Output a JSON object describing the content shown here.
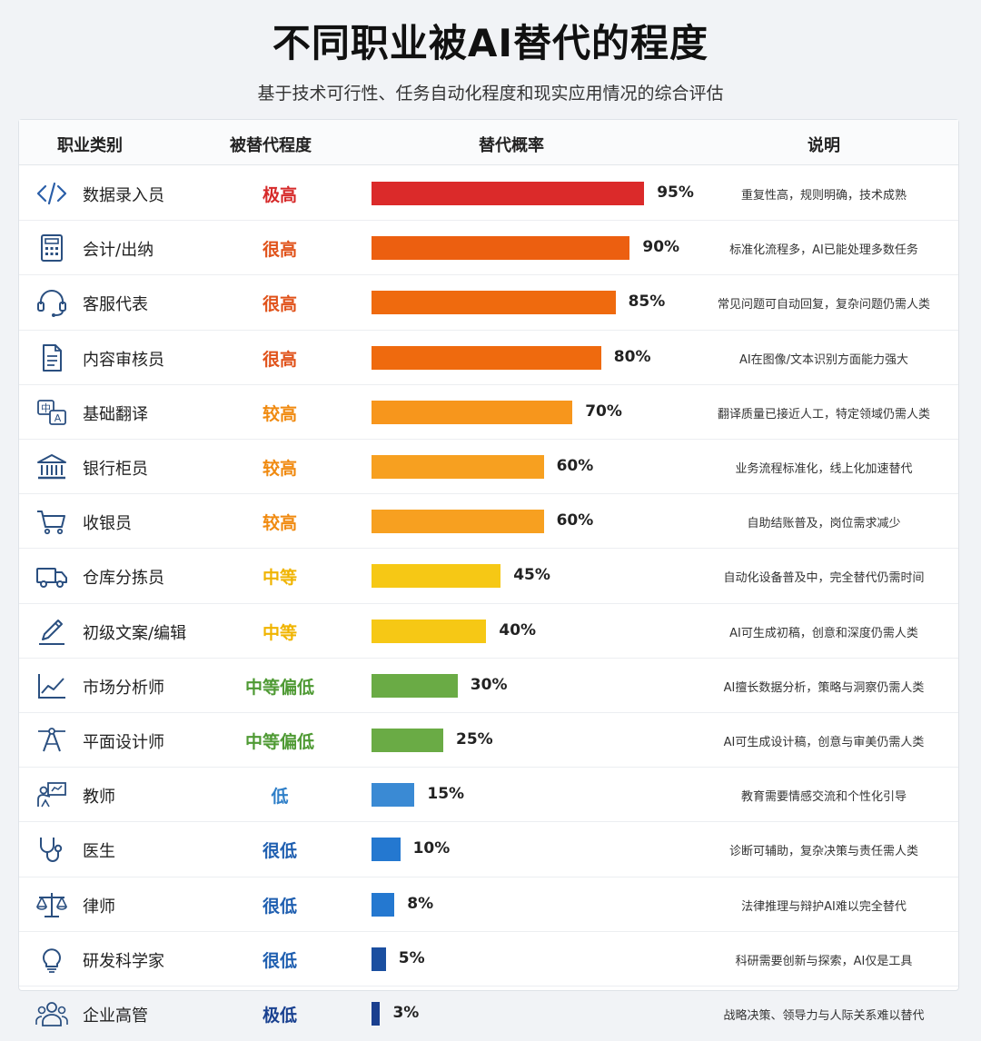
{
  "title": "不同职业被AI替代的程度",
  "subtitle": "基于技术可行性、任务自动化程度和现实应用情况的综合评估",
  "headers": {
    "job": "职业类别",
    "level": "被替代程度",
    "prob": "替代概率",
    "desc": "说明"
  },
  "chart_data": {
    "type": "bar",
    "orientation": "horizontal",
    "title": "不同职业被AI替代的程度",
    "unit": "%",
    "categories": [
      "数据录入员",
      "会计/出纳",
      "客服代表",
      "内容审核员",
      "基础翻译",
      "银行柜员",
      "收银员",
      "仓库分拣员",
      "初级文案/编辑",
      "市场分析师",
      "平面设计师",
      "教师",
      "医生",
      "律师",
      "研发科学家",
      "企业高管"
    ],
    "values": [
      95,
      90,
      85,
      80,
      70,
      60,
      60,
      45,
      40,
      30,
      25,
      15,
      10,
      8,
      5,
      3
    ],
    "xlim": [
      0,
      100
    ],
    "rows": [
      {
        "icon": "code-icon",
        "job": "数据录入员",
        "level": "极高",
        "level_color": "#d62a2a",
        "value": 95,
        "pct": "95%",
        "bar_color": "#db2a2a",
        "desc": "重复性高，规则明确，技术成熟"
      },
      {
        "icon": "calculator-icon",
        "job": "会计/出纳",
        "level": "很高",
        "level_color": "#e0521a",
        "value": 90,
        "pct": "90%",
        "bar_color": "#ec5f10",
        "desc": "标准化流程多，AI已能处理多数任务"
      },
      {
        "icon": "headset-icon",
        "job": "客服代表",
        "level": "很高",
        "level_color": "#e0521a",
        "value": 85,
        "pct": "85%",
        "bar_color": "#ef6a0e",
        "desc": "常见问题可自动回复，复杂问题仍需人类"
      },
      {
        "icon": "document-icon",
        "job": "内容审核员",
        "level": "很高",
        "level_color": "#e0521a",
        "value": 80,
        "pct": "80%",
        "bar_color": "#ef6a0e",
        "desc": "AI在图像/文本识别方面能力强大"
      },
      {
        "icon": "translate-icon",
        "job": "基础翻译",
        "level": "较高",
        "level_color": "#f08a10",
        "value": 70,
        "pct": "70%",
        "bar_color": "#f7961c",
        "desc": "翻译质量已接近人工，特定领域仍需人类"
      },
      {
        "icon": "bank-icon",
        "job": "银行柜员",
        "level": "较高",
        "level_color": "#f08a10",
        "value": 60,
        "pct": "60%",
        "bar_color": "#f7a020",
        "desc": "业务流程标准化，线上化加速替代"
      },
      {
        "icon": "cart-icon",
        "job": "收银员",
        "level": "较高",
        "level_color": "#f08a10",
        "value": 60,
        "pct": "60%",
        "bar_color": "#f7a020",
        "desc": "自助结账普及，岗位需求减少"
      },
      {
        "icon": "truck-icon",
        "job": "仓库分拣员",
        "level": "中等",
        "level_color": "#f0b400",
        "value": 45,
        "pct": "45%",
        "bar_color": "#f6c815",
        "desc": "自动化设备普及中，完全替代仍需时间"
      },
      {
        "icon": "pen-icon",
        "job": "初级文案/编辑",
        "level": "中等",
        "level_color": "#f0b400",
        "value": 40,
        "pct": "40%",
        "bar_color": "#f6c815",
        "desc": "AI可生成初稿，创意和深度仍需人类"
      },
      {
        "icon": "trend-chart-icon",
        "job": "市场分析师",
        "level": "中等偏低",
        "level_color": "#4f9a34",
        "value": 30,
        "pct": "30%",
        "bar_color": "#6aab45",
        "desc": "AI擅长数据分析，策略与洞察仍需人类"
      },
      {
        "icon": "design-tool-icon",
        "job": "平面设计师",
        "level": "中等偏低",
        "level_color": "#4f9a34",
        "value": 25,
        "pct": "25%",
        "bar_color": "#6aab45",
        "desc": "AI可生成设计稿，创意与审美仍需人类"
      },
      {
        "icon": "teacher-icon",
        "job": "教师",
        "level": "低",
        "level_color": "#2f7fc8",
        "value": 15,
        "pct": "15%",
        "bar_color": "#3a8ad4",
        "desc": "教育需要情感交流和个性化引导"
      },
      {
        "icon": "stethoscope-icon",
        "job": "医生",
        "level": "很低",
        "level_color": "#1f5fb0",
        "value": 10,
        "pct": "10%",
        "bar_color": "#2478d0",
        "desc": "诊断可辅助，复杂决策与责任需人类"
      },
      {
        "icon": "scales-icon",
        "job": "律师",
        "level": "很低",
        "level_color": "#1f5fb0",
        "value": 8,
        "pct": "8%",
        "bar_color": "#2478d0",
        "desc": "法律推理与辩护AI难以完全替代"
      },
      {
        "icon": "lightbulb-icon",
        "job": "研发科学家",
        "level": "很低",
        "level_color": "#1f5fb0",
        "value": 5,
        "pct": "5%",
        "bar_color": "#1b4fa0",
        "desc": "科研需要创新与探索，AI仅是工具"
      },
      {
        "icon": "people-icon",
        "job": "企业高管",
        "level": "极低",
        "level_color": "#1a4190",
        "value": 3,
        "pct": "3%",
        "bar_color": "#1a3f8f",
        "desc": "战略决策、领导力与人际关系难以替代"
      }
    ]
  }
}
